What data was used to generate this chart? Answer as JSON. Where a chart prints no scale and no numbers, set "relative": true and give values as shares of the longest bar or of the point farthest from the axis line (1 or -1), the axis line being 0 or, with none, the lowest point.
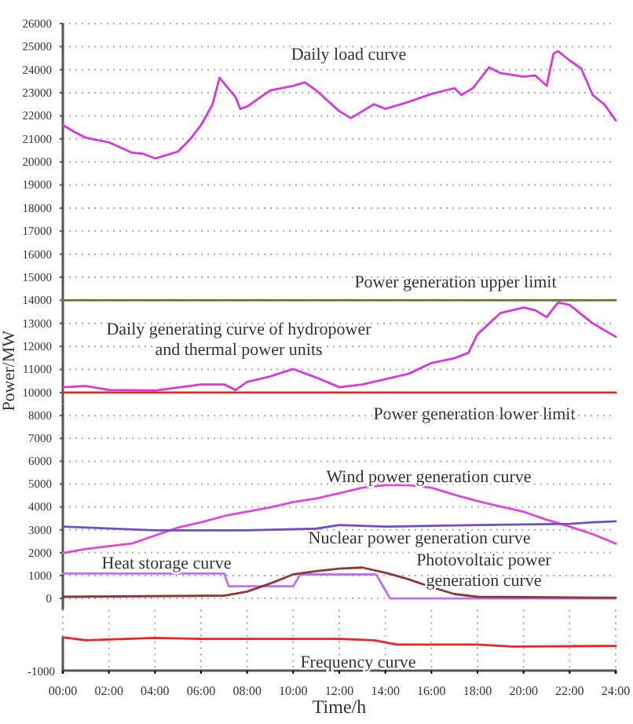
{
  "chart_data": [
    {
      "type": "line",
      "ylabel": "Power/MW",
      "xlim": [
        0,
        24
      ],
      "ylim": [
        9500,
        26000
      ],
      "yticks": [
        10000,
        11000,
        12000,
        13000,
        14000,
        15000,
        16000,
        17000,
        18000,
        19000,
        20000,
        21000,
        22000,
        23000,
        24000,
        25000,
        26000
      ],
      "tick_labels": "y",
      "grid": true,
      "marker": "none",
      "line_style": "solid",
      "series": [
        {
          "name": "Daily load curve",
          "color": "#d63ad8",
          "x": [
            0,
            0.5,
            1,
            2,
            3,
            3.5,
            4,
            5,
            5.5,
            6,
            6.5,
            6.8,
            7.5,
            7.7,
            8,
            9,
            10,
            10.5,
            11,
            12,
            12.5,
            13,
            13.5,
            14,
            15,
            16,
            17,
            17.3,
            17.8,
            18.5,
            19,
            20,
            20.5,
            21,
            21.3,
            21.5,
            22,
            22.5,
            23,
            23.5,
            24
          ],
          "values": [
            21600,
            21300,
            21050,
            20850,
            20400,
            20350,
            20150,
            20450,
            20950,
            21600,
            22500,
            23650,
            22800,
            22300,
            22400,
            23100,
            23300,
            23450,
            23100,
            22200,
            21900,
            22200,
            22500,
            22300,
            22600,
            22950,
            23200,
            22900,
            23200,
            24100,
            23850,
            23700,
            23750,
            23300,
            24700,
            24800,
            24400,
            24050,
            22900,
            22500,
            21800
          ]
        },
        {
          "name": "Power generation upper limit",
          "color": "#6b7a2a",
          "x": [
            0,
            24
          ],
          "values": [
            14000,
            14000
          ]
        },
        {
          "name": "Daily generating curve of hydropower and thermal power units",
          "color": "#d63ad8",
          "x": [
            0,
            1,
            2,
            4,
            6,
            7,
            7.5,
            8,
            9,
            10,
            11,
            12,
            13,
            14,
            15,
            16,
            17,
            17.6,
            18,
            19,
            20,
            20.5,
            21,
            21.5,
            22,
            23,
            24
          ],
          "values": [
            10230,
            10280,
            10110,
            10090,
            10350,
            10350,
            10110,
            10460,
            10700,
            11020,
            10650,
            10230,
            10350,
            10580,
            10810,
            11280,
            11490,
            11720,
            12530,
            13450,
            13690,
            13570,
            13270,
            13910,
            13800,
            13000,
            12420
          ]
        },
        {
          "name": "Power generation lower limit",
          "color": "#e8262a",
          "x": [
            0,
            24
          ],
          "values": [
            10000,
            10000
          ]
        }
      ]
    },
    {
      "type": "line",
      "xlim": [
        0,
        24
      ],
      "ylim": [
        -500,
        8500
      ],
      "yticks": [
        0,
        1000,
        2000,
        3000,
        4000,
        5000,
        6000,
        7000,
        8000
      ],
      "tick_labels": "y",
      "grid": true,
      "marker": "none",
      "line_style": "solid",
      "series": [
        {
          "name": "Wind power generation curve",
          "color": "#e046d8",
          "x": [
            0,
            1,
            2,
            3,
            4,
            5,
            6,
            7,
            8,
            9,
            10,
            11,
            12,
            13,
            14,
            15,
            16,
            17,
            18,
            19,
            20,
            21,
            22,
            23,
            24
          ],
          "values": [
            1980,
            2160,
            2280,
            2400,
            2750,
            3100,
            3330,
            3600,
            3790,
            3980,
            4210,
            4370,
            4600,
            4840,
            4950,
            4950,
            4840,
            4530,
            4260,
            4020,
            3790,
            3440,
            3140,
            2810,
            2400
          ]
        },
        {
          "name": "Nuclear power generation curve",
          "color": "#7050c0",
          "x": [
            0,
            4,
            8,
            11,
            12,
            14,
            18,
            22,
            23,
            24
          ],
          "values": [
            3140,
            2980,
            2980,
            3050,
            3210,
            3140,
            3210,
            3260,
            3330,
            3370
          ]
        },
        {
          "name": "Heat storage curve",
          "color": "#c070f0",
          "x": [
            0,
            7,
            7.2,
            10,
            10.3,
            13.6,
            14.2,
            24
          ],
          "values": [
            1090,
            1090,
            530,
            530,
            1050,
            1050,
            0,
            0
          ]
        },
        {
          "name": "Photovoltaic power generation curve",
          "color": "#8b3a3a",
          "x": [
            0,
            7,
            8,
            9,
            10,
            11,
            12,
            13,
            14,
            15,
            16,
            17,
            18,
            24
          ],
          "values": [
            70,
            120,
            300,
            650,
            1050,
            1190,
            1300,
            1350,
            1120,
            840,
            490,
            190,
            70,
            30
          ]
        }
      ]
    },
    {
      "type": "line",
      "xlabel": "Time/h",
      "xlim": [
        0,
        24
      ],
      "xticks": [
        {
          "value": 0,
          "label": "00:00"
        },
        {
          "value": 2,
          "label": "02:00"
        },
        {
          "value": 4,
          "label": "04:00"
        },
        {
          "value": 6,
          "label": "06:00"
        },
        {
          "value": 8,
          "label": "08:00"
        },
        {
          "value": 10,
          "label": "10:00"
        },
        {
          "value": 12,
          "label": "12:00"
        },
        {
          "value": 14,
          "label": "14:00"
        },
        {
          "value": 16,
          "label": "16:00"
        },
        {
          "value": 18,
          "label": "18:00"
        },
        {
          "value": 20,
          "label": "20:00"
        },
        {
          "value": 22,
          "label": "22:00"
        },
        {
          "value": 24,
          "label": "24:00"
        }
      ],
      "relative": true,
      "tick_labels": "x",
      "grid": "x",
      "marker": "none",
      "line_style": "solid",
      "annotations": [
        "-1000"
      ],
      "series": [
        {
          "name": "Frequency curve",
          "color": "#e8262a",
          "x": [
            0,
            1,
            4,
            6,
            12,
            13.5,
            14.5,
            18,
            19.5,
            24
          ],
          "values": [
            1,
            0.91,
            0.98,
            0.95,
            0.95,
            0.91,
            0.78,
            0.78,
            0.72,
            0.74
          ]
        }
      ]
    }
  ]
}
